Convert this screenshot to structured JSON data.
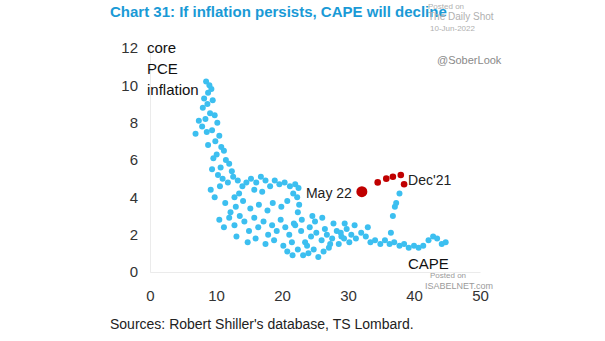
{
  "chart_data": {
    "type": "scatter",
    "title": "Chart 31: If inflation persists, CAPE will decline",
    "x_label": "CAPE",
    "y_label": "core PCE inflation",
    "source": "Sources: Robert Shiller's database, TS Lombard.",
    "annotations": [
      "May 22",
      "Dec'21"
    ],
    "watermarks": [
      "Posted on",
      "The Daily Shot",
      "10-Jun-2022",
      "@SoberLook",
      "Posted on",
      "ISABELNET.com"
    ],
    "xlim": [
      0,
      50
    ],
    "xticks": [
      0,
      10,
      20,
      30,
      40,
      50
    ],
    "ylim": [
      0,
      12
    ],
    "yticks": [
      0,
      2,
      4,
      6,
      8,
      10,
      12
    ],
    "grid": false,
    "series": [
      {
        "color": "#3cbff0",
        "marker": "circle",
        "x": [
          8.5,
          9.0,
          8.8,
          9.3,
          8.2,
          8.7,
          9.5,
          8.0,
          9.1,
          8.4,
          9.8,
          10.2,
          7.9,
          8.6,
          9.4,
          10.5,
          9.9,
          8.8,
          10.8,
          11.2,
          10.1,
          9.6,
          11.5,
          12.0,
          10.7,
          12.4,
          6.9,
          7.4,
          9.4,
          10.3,
          11.0,
          9.2,
          9.8,
          10.6,
          11.8,
          12.6,
          13.3,
          14.0,
          13.5,
          12.8,
          14.6,
          15.3,
          16.1,
          16.8,
          17.5,
          15.8,
          17.0,
          18.2,
          18.9,
          19.6,
          20.4,
          21.2,
          22.0,
          22.5,
          21.7,
          22.3,
          20.8,
          19.9,
          18.6,
          17.8,
          16.5,
          15.2,
          14.1,
          13.0,
          12.2,
          11.4,
          22.6,
          22.4,
          10.5,
          11.2,
          12.0,
          12.8,
          13.6,
          14.3,
          15.0,
          15.8,
          16.4,
          17.2,
          17.9,
          18.5,
          19.2,
          19.8,
          20.5,
          21.1,
          21.8,
          13.1,
          14.8,
          16.0,
          17.5,
          18.8,
          20.2,
          21.5,
          20.8,
          21.6,
          22.4,
          23.2,
          24.0,
          24.8,
          25.5,
          26.3,
          27.1,
          23.5,
          24.4,
          25.2,
          26.0,
          26.8,
          27.6,
          22.9,
          28.3,
          29.0,
          29.8,
          30.5,
          31.2,
          32.0,
          32.7,
          33.4,
          34.1,
          34.9,
          35.6,
          36.3,
          37.0,
          37.8,
          38.5,
          39.2,
          40.0,
          40.7,
          41.4,
          42.2,
          42.9,
          43.5,
          44.2,
          44.8,
          29.5,
          31.0,
          33.0,
          30.2,
          28.6,
          36.5,
          36.8,
          37.1,
          37.3,
          37.8,
          22.0,
          23.0,
          24.2,
          25.0,
          26.5,
          27.8,
          28.9,
          24.6,
          26.1,
          23.8,
          27.3,
          29.4
        ],
        "values": [
          10.2,
          10.0,
          9.6,
          9.8,
          9.3,
          9.0,
          9.2,
          8.8,
          8.5,
          8.2,
          8.4,
          8.0,
          7.8,
          7.5,
          7.6,
          7.3,
          7.0,
          6.8,
          6.7,
          6.5,
          6.3,
          6.1,
          6.0,
          5.8,
          5.6,
          5.4,
          7.4,
          8.1,
          5.5,
          5.2,
          5.0,
          4.4,
          4.0,
          4.6,
          4.8,
          5.1,
          4.9,
          4.6,
          4.2,
          4.0,
          4.8,
          5.0,
          4.8,
          5.1,
          4.9,
          4.4,
          4.3,
          4.6,
          4.9,
          4.7,
          4.8,
          4.6,
          4.7,
          4.5,
          4.2,
          4.0,
          3.8,
          3.5,
          3.7,
          3.3,
          3.6,
          3.4,
          3.8,
          3.5,
          3.2,
          3.7,
          3.6,
          3.2,
          2.8,
          2.4,
          2.9,
          2.5,
          3.0,
          2.7,
          2.2,
          2.9,
          2.4,
          2.7,
          2.0,
          2.5,
          2.2,
          2.8,
          2.4,
          2.0,
          2.6,
          1.9,
          1.6,
          1.8,
          1.5,
          1.7,
          1.4,
          1.6,
          1.1,
          0.9,
          1.2,
          0.9,
          1.0,
          1.2,
          0.8,
          1.1,
          1.3,
          1.6,
          1.9,
          2.1,
          1.7,
          2.0,
          1.8,
          2.2,
          2.2,
          1.9,
          2.3,
          2.0,
          1.8,
          2.1,
          1.9,
          1.6,
          1.7,
          1.5,
          1.7,
          1.5,
          1.6,
          1.4,
          1.5,
          1.3,
          1.4,
          1.3,
          1.4,
          1.7,
          1.9,
          1.8,
          1.5,
          1.6,
          2.6,
          2.5,
          2.4,
          1.6,
          1.5,
          2.1,
          3.0,
          3.5,
          3.7,
          4.2,
          2.5,
          2.8,
          2.4,
          2.7,
          2.3,
          2.6,
          2.1,
          3.0,
          2.9,
          1.4,
          1.5,
          1.8
        ]
      },
      {
        "color": "#c00000",
        "marker": "circle",
        "x": [
          38.5,
          38.0,
          36.8,
          35.8,
          34.5,
          32.1
        ],
        "values": [
          4.7,
          5.2,
          5.1,
          5.0,
          4.8,
          4.3
        ]
      }
    ]
  }
}
